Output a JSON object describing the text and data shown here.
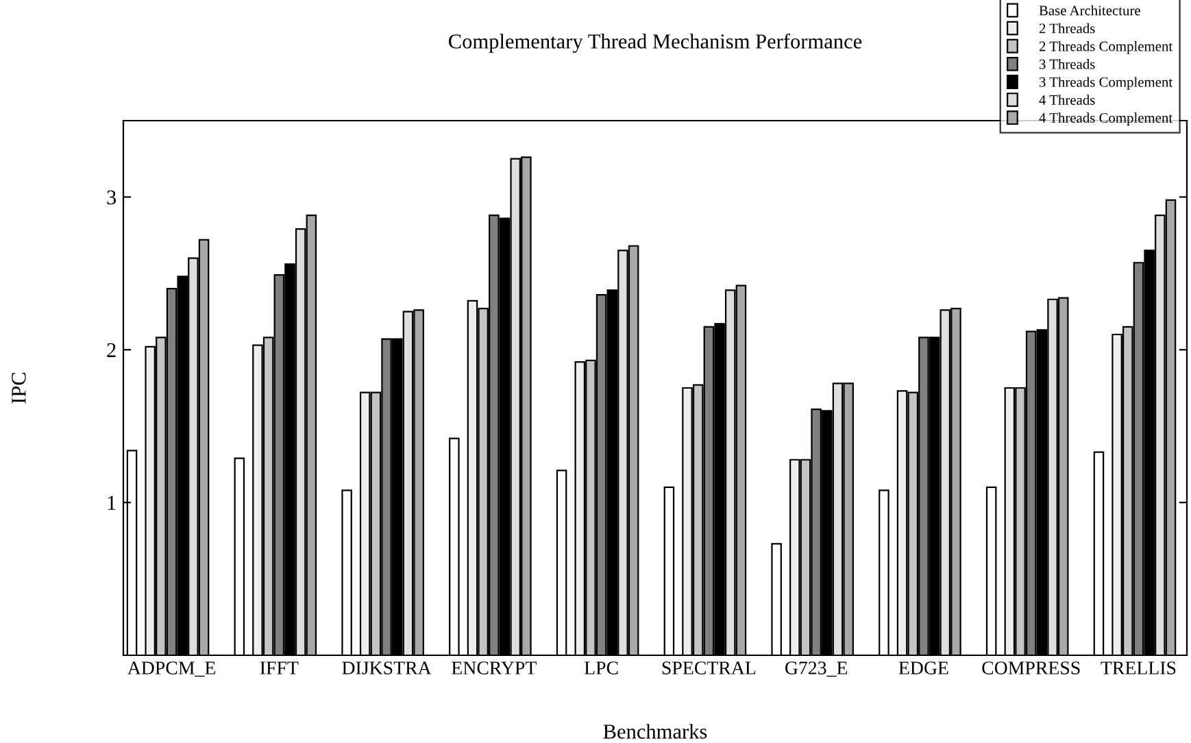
{
  "chart_data": {
    "type": "bar",
    "title": "Complementary Thread Mechanism Performance",
    "xlabel": "Benchmarks",
    "ylabel": "IPC",
    "categories": [
      "ADPCM_E",
      "IFFT",
      "DIJKSTRA",
      "ENCRYPT",
      "LPC",
      "SPECTRAL",
      "G723_E",
      "EDGE",
      "COMPRESS",
      "TRELLIS"
    ],
    "series": [
      {
        "name": "Base Architecture",
        "color": "#ffffff",
        "values": [
          1.34,
          1.29,
          1.08,
          1.42,
          1.21,
          1.1,
          0.73,
          1.08,
          1.1,
          1.33
        ]
      },
      {
        "name": "2 Threads",
        "color": "#eeeeee",
        "values": [
          2.02,
          2.03,
          1.72,
          2.32,
          1.92,
          1.75,
          1.28,
          1.73,
          1.75,
          2.1
        ]
      },
      {
        "name": "2 Threads Complement",
        "color": "#c4c4c4",
        "values": [
          2.08,
          2.08,
          1.72,
          2.27,
          1.93,
          1.77,
          1.28,
          1.72,
          1.75,
          2.15
        ]
      },
      {
        "name": "3 Threads",
        "color": "#808080",
        "values": [
          2.4,
          2.49,
          2.07,
          2.88,
          2.36,
          2.15,
          1.61,
          2.08,
          2.12,
          2.57
        ]
      },
      {
        "name": "3 Threads Complement",
        "color": "#000000",
        "values": [
          2.48,
          2.56,
          2.07,
          2.86,
          2.39,
          2.17,
          1.6,
          2.08,
          2.13,
          2.65
        ]
      },
      {
        "name": "4 Threads",
        "color": "#dedede",
        "values": [
          2.6,
          2.79,
          2.25,
          3.25,
          2.65,
          2.39,
          1.78,
          2.26,
          2.33,
          2.88
        ]
      },
      {
        "name": "4 Threads Complement",
        "color": "#a8a8a8",
        "values": [
          2.72,
          2.88,
          2.26,
          3.26,
          2.68,
          2.42,
          1.78,
          2.27,
          2.34,
          2.98
        ]
      }
    ],
    "ylim": [
      0,
      3.5
    ],
    "yticks": [
      1,
      2,
      3
    ],
    "grid": false,
    "legend": "top right"
  }
}
